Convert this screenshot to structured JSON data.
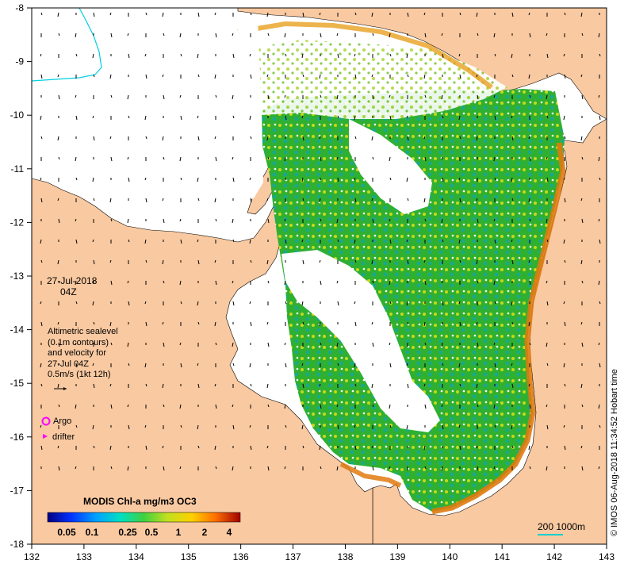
{
  "map": {
    "date": "27-Jul-2018",
    "time": "04Z",
    "x_ticks": [
      "132",
      "133",
      "134",
      "135",
      "136",
      "137",
      "138",
      "139",
      "140",
      "141",
      "142",
      "143"
    ],
    "y_ticks": [
      "-8",
      "-9",
      "-10",
      "-11",
      "-12",
      "-13",
      "-14",
      "-15",
      "-16",
      "-17",
      "-18"
    ],
    "altimetric_note": [
      "Altimetric sealevel",
      "(0.1m contours)",
      "and velocity for",
      "27-Jul 04Z",
      "0.5m/s (1kt 12h)"
    ],
    "legend": {
      "argo": "Argo",
      "drifter": "drifter"
    },
    "colorbar": {
      "title": "MODIS Chl-a mg/m3 OC3",
      "labels": [
        "0.05",
        "0.1",
        "0.25",
        "0.5",
        "1",
        "2",
        "4"
      ]
    },
    "scale_bar": "200  1000m",
    "credit": "© IMOS 06-Aug-2018 11:34:52 Hobart time",
    "colors": {
      "land": "#f9c9a1",
      "ocean_green": "#2cb02c",
      "ocean_teal": "#19b08a",
      "ocean_yellow": "#c8d81a",
      "coast_orange": "#e07a10",
      "argo": "#ff00ff",
      "scale_bar": "#00d0d0"
    }
  }
}
